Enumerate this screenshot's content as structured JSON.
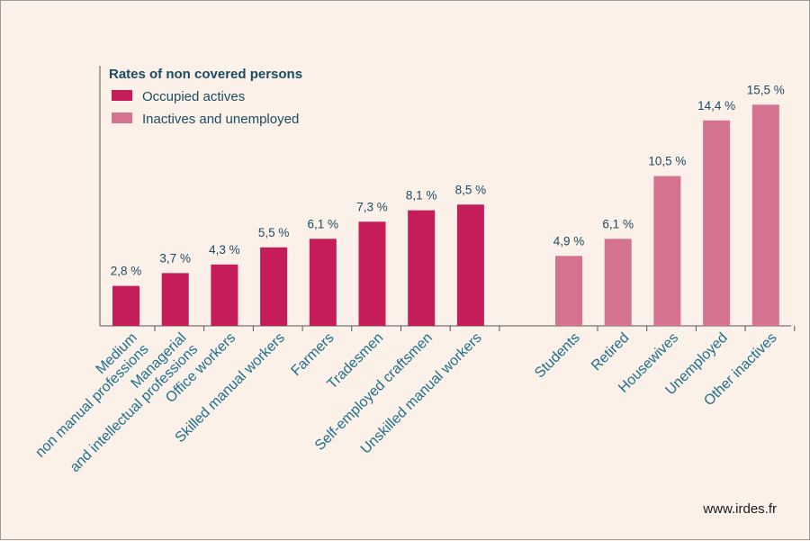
{
  "colors": {
    "background": "#fbf1e9",
    "axis": "#555555",
    "occupied": "#c41d5a",
    "inactive": "#d4738f",
    "text": "#1b4b63",
    "category_text": "#1d6e8c"
  },
  "legend": {
    "title": "Rates of non covered persons",
    "items": [
      {
        "label": "Occupied actives",
        "color": "#c41d5a"
      },
      {
        "label": "Inactives and unemployed",
        "color": "#d4738f"
      }
    ]
  },
  "source": "www.irdes.fr",
  "chart_data": {
    "type": "bar",
    "title": "Rates of non covered persons",
    "xlabel": "",
    "ylabel": "",
    "ylim": [
      0,
      16
    ],
    "grid": false,
    "legend_position": "top-left",
    "series": [
      {
        "name": "Occupied actives",
        "color": "#c41d5a",
        "categories": [
          [
            "Medium",
            "non manual professions"
          ],
          [
            "Managerial",
            "and intellectual professions"
          ],
          [
            "Office workers"
          ],
          [
            "Skilled manual workers"
          ],
          [
            "Farmers"
          ],
          [
            "Tradesmen"
          ],
          [
            "Self-employed craftsmen"
          ],
          [
            "Unskilled manual workers"
          ]
        ],
        "values": [
          2.8,
          3.7,
          4.3,
          5.5,
          6.1,
          7.3,
          8.1,
          8.5
        ],
        "labels": [
          "2,8 %",
          "3,7 %",
          "4,3 %",
          "5,5 %",
          "6,1 %",
          "7,3 %",
          "8,1 %",
          "8,5 %"
        ]
      },
      {
        "name": "Inactives and unemployed",
        "color": "#d4738f",
        "categories": [
          [
            "Students"
          ],
          [
            "Retired"
          ],
          [
            "Housewives"
          ],
          [
            "Unemployed"
          ],
          [
            "Other inactives"
          ]
        ],
        "values": [
          4.9,
          6.1,
          10.5,
          14.4,
          15.5
        ],
        "labels": [
          "4,9 %",
          "6,1 %",
          "10,5 %",
          "14,4 %",
          "15,5 %"
        ]
      }
    ]
  }
}
